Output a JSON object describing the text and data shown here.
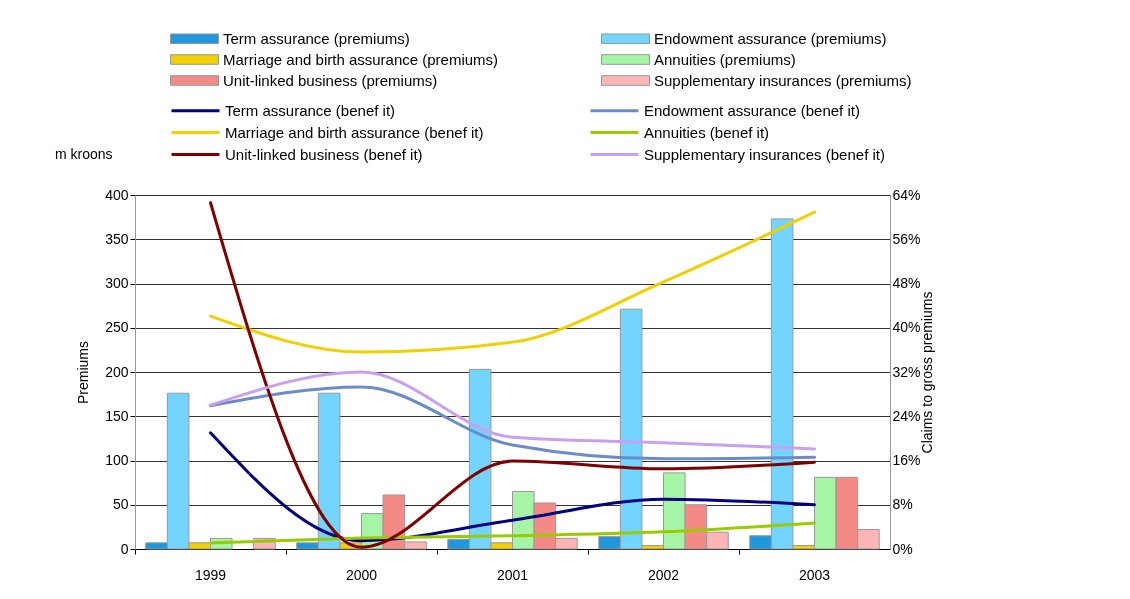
{
  "chart_data": {
    "type": "bar",
    "categories": [
      "1999",
      "2000",
      "2001",
      "2002",
      "2003"
    ],
    "ylabel": "Premiums",
    "y2label": "Claims to gross premiums",
    "annotations": [
      "m kroons"
    ],
    "ylim": [
      0,
      400
    ],
    "yticks": [
      0,
      50,
      100,
      150,
      200,
      250,
      300,
      350,
      400
    ],
    "y2lim": [
      0,
      64
    ],
    "y2ticks": [
      {
        "value": 0,
        "label": "0%"
      },
      {
        "value": 8,
        "label": "8%"
      },
      {
        "value": 16,
        "label": "16%"
      },
      {
        "value": 24,
        "label": "24%"
      },
      {
        "value": 32,
        "label": "32%"
      },
      {
        "value": 40,
        "label": "40%"
      },
      {
        "value": 48,
        "label": "48%"
      },
      {
        "value": 56,
        "label": "56%"
      },
      {
        "value": 64,
        "label": "64%"
      }
    ],
    "grid": "y",
    "legend": "top",
    "series": [
      {
        "name": "Term assurance (premiums)",
        "type": "bar",
        "color": "#1f97dc",
        "values": [
          7,
          7,
          11,
          14,
          15
        ]
      },
      {
        "name": "Endowment assurance (premiums)",
        "type": "bar",
        "color": "#72d4ff",
        "values": [
          176,
          176,
          203,
          271,
          373
        ]
      },
      {
        "name": "Marriage and birth assurance (premiums)",
        "type": "bar",
        "color": "#f0d000",
        "values": [
          7,
          7,
          7,
          4,
          4
        ]
      },
      {
        "name": "Annuities (premiums)",
        "type": "bar",
        "color": "#a6f5a6",
        "values": [
          12,
          40,
          65,
          86,
          81
        ]
      },
      {
        "name": "Unit-linked business (premiums)",
        "type": "bar",
        "color": "#f48a86",
        "values": [
          null,
          61,
          52,
          50,
          81
        ]
      },
      {
        "name": "Supplementary insurances (premiums)",
        "type": "bar",
        "color": "#fdb5b5",
        "values": [
          12,
          8,
          12,
          19,
          22
        ]
      },
      {
        "name": "Term assurance (benef it)",
        "type": "line",
        "axis": "y2",
        "color": "#000080",
        "values": [
          21.0,
          1.5,
          5.2,
          9.0,
          8.0
        ]
      },
      {
        "name": "Endowment assurance (benef it)",
        "type": "line",
        "axis": "y2",
        "color": "#6b8cc8",
        "values": [
          25.9,
          29.3,
          18.8,
          16.3,
          16.6
        ]
      },
      {
        "name": "Marriage and birth assurance (benef it)",
        "type": "line",
        "axis": "y2",
        "color": "#f0d000",
        "values": [
          42.1,
          35.6,
          37.4,
          48.3,
          60.9
        ]
      },
      {
        "name": "Annuities (benef it)",
        "type": "line",
        "axis": "y2",
        "color": "#99cc00",
        "values": [
          1.1,
          2.0,
          2.4,
          3.1,
          4.7
        ]
      },
      {
        "name": "Unit-linked business (benef it)",
        "type": "line",
        "axis": "y2",
        "color": "#800000",
        "values": [
          62.6,
          0.3,
          15.9,
          14.5,
          15.7
        ]
      },
      {
        "name": "Supplementary insurances (benef it)",
        "type": "line",
        "axis": "y2",
        "color": "#c9a0f0",
        "values": [
          26.0,
          32.0,
          20.2,
          19.2,
          18.1
        ]
      }
    ]
  }
}
